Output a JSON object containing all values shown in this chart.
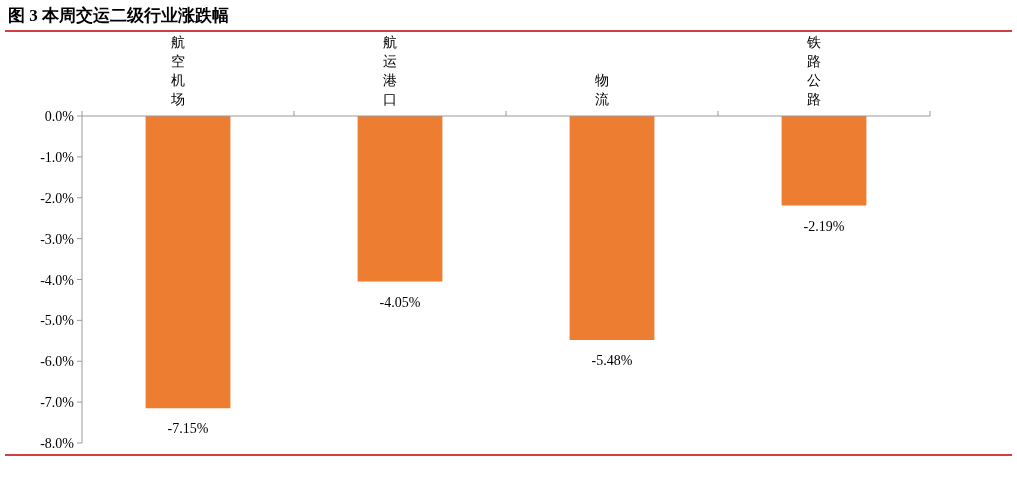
{
  "chart_data": {
    "type": "bar",
    "title": "图 3 本周交运二级行业涨跌幅",
    "categories": [
      "航空机场",
      "航运港口",
      "物流",
      "铁路公路"
    ],
    "values": [
      -7.15,
      -4.05,
      -5.48,
      -2.19
    ],
    "value_labels": [
      "-7.15%",
      "-4.05%",
      "-5.48%",
      "-2.19%"
    ],
    "color": "#ed7d31",
    "ylim": [
      -8,
      0
    ],
    "yticks": [
      {
        "value": 0,
        "label": "0.0%"
      },
      {
        "value": -1,
        "label": "-1.0%"
      },
      {
        "value": -2,
        "label": "-2.0%"
      },
      {
        "value": -3,
        "label": "-3.0%"
      },
      {
        "value": -4,
        "label": "-4.0%"
      },
      {
        "value": -5,
        "label": "-5.0%"
      },
      {
        "value": -6,
        "label": "-6.0%"
      },
      {
        "value": -7,
        "label": "-7.0%"
      },
      {
        "value": -8,
        "label": "-8.0%"
      }
    ]
  }
}
